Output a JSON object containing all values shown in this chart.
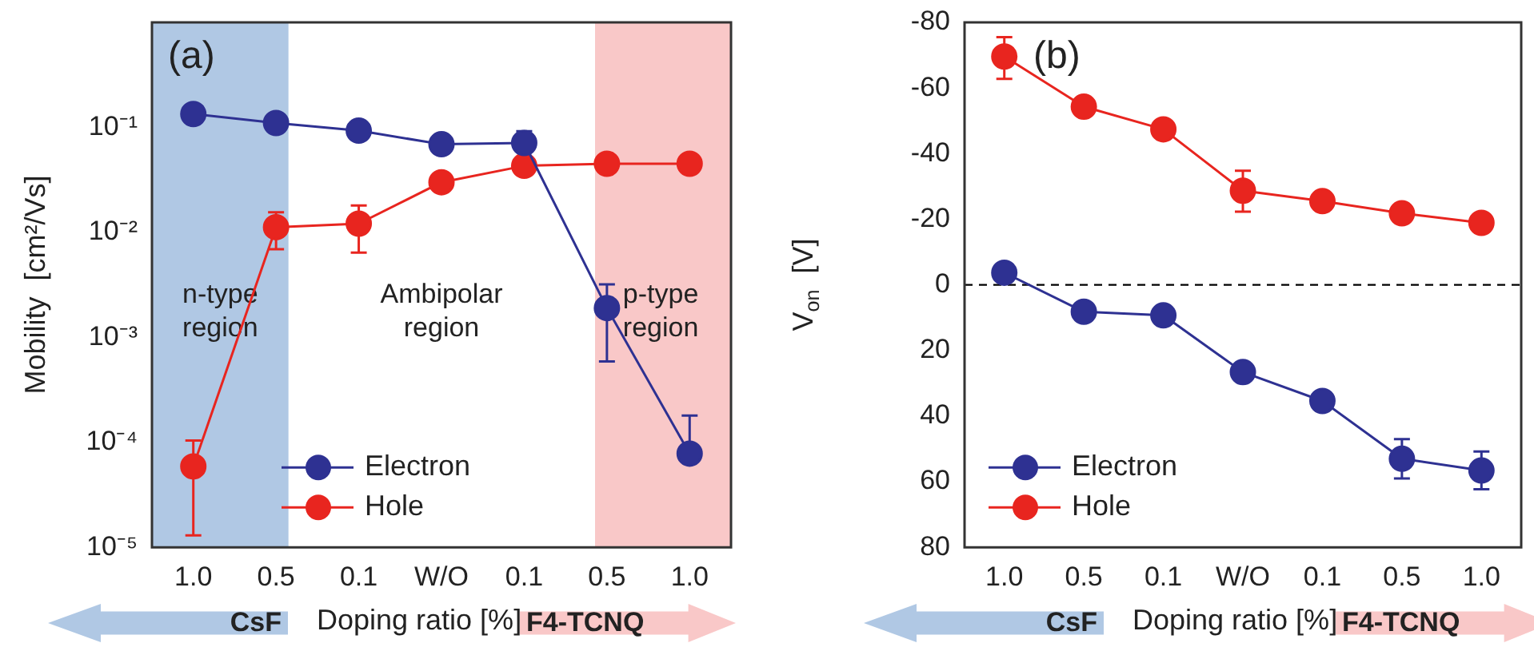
{
  "chart_data": [
    {
      "type": "line",
      "title": "(a)",
      "ylabel": "Mobility  [cm²/Vs]",
      "xlabel": "Doping ratio [%]",
      "categories": [
        "1.0",
        "0.5",
        "0.1",
        "W/O",
        "0.1",
        "0.5",
        "1.0"
      ],
      "log": "y",
      "ylim": [
        1e-05,
        1
      ],
      "yticks": [
        {
          "value": 1e-05,
          "label": "10⁻⁵"
        },
        {
          "value": 0.0001,
          "label": "10⁻⁴"
        },
        {
          "value": 0.001,
          "label": "10⁻³"
        },
        {
          "value": 0.01,
          "label": "10⁻²"
        },
        {
          "value": 0.1,
          "label": "10⁻¹"
        }
      ],
      "series": [
        {
          "name": "Electron",
          "color": "#2e3192",
          "values": [
            0.134,
            0.11,
            0.093,
            0.069,
            0.071,
            0.0019,
            7.8e-05
          ],
          "errors": [
            null,
            null,
            null,
            null,
            [
              0.071,
              0.092
            ],
            [
              0.00059,
              0.0032
            ],
            [
              7.8e-05,
              0.00018
            ]
          ]
        },
        {
          "name": "Hole",
          "color": "#e8251f",
          "values": [
            5.9e-05,
            0.0112,
            0.0121,
            0.03,
            0.043,
            0.045,
            0.045
          ],
          "errors": [
            [
              1.3e-05,
              0.000104
            ],
            [
              0.0069,
              0.0155
            ],
            [
              0.0064,
              0.018
            ],
            null,
            null,
            null,
            null
          ]
        }
      ],
      "bands": [
        {
          "axis": "x",
          "from": "1.0",
          "to": "0.5",
          "label": "n-type\nregion",
          "color": "#b0c8e4"
        }
      ],
      "annotations": [
        "Ambipolar\nregion",
        "p-type\nregion",
        "CsF",
        "F4-TCNQ"
      ],
      "marker": "circle",
      "legend": "bottom",
      "grid": false
    },
    {
      "type": "line",
      "title": "(b)",
      "ylabel": "V$_{on}$  [V]",
      "xlabel": "Doping ratio [%]",
      "categories": [
        "1.0",
        "0.5",
        "0.1",
        "W/O",
        "0.1",
        "0.5",
        "1.0"
      ],
      "ylim": [
        80,
        -80
      ],
      "yticks": [
        -80,
        -60,
        -40,
        -20,
        0,
        20,
        40,
        60,
        80
      ],
      "series": [
        {
          "name": "Electron",
          "color": "#2e3192",
          "values": [
            -3.7,
            8.2,
            9.3,
            26.6,
            35.4,
            53,
            56.6
          ],
          "errors": [
            null,
            null,
            null,
            null,
            null,
            [
              47,
              59
            ],
            [
              50.8,
              62.3
            ]
          ]
        },
        {
          "name": "Hole",
          "color": "#e8251f",
          "values": [
            -69.6,
            -54.3,
            -47.4,
            -28.7,
            -25.5,
            -21.8,
            -18.9
          ],
          "errors": [
            [
              -75.5,
              -62.8
            ],
            null,
            null,
            [
              -34.8,
              -22.3
            ],
            null,
            null,
            null
          ]
        }
      ],
      "ref_lines": [
        {
          "axis": "y",
          "value": 0,
          "color": "#000000",
          "line_style": "dashed"
        }
      ],
      "annotations": [
        "CsF",
        "F4-TCNQ"
      ],
      "marker": "circle",
      "legend": "bottom left",
      "grid": false
    }
  ]
}
